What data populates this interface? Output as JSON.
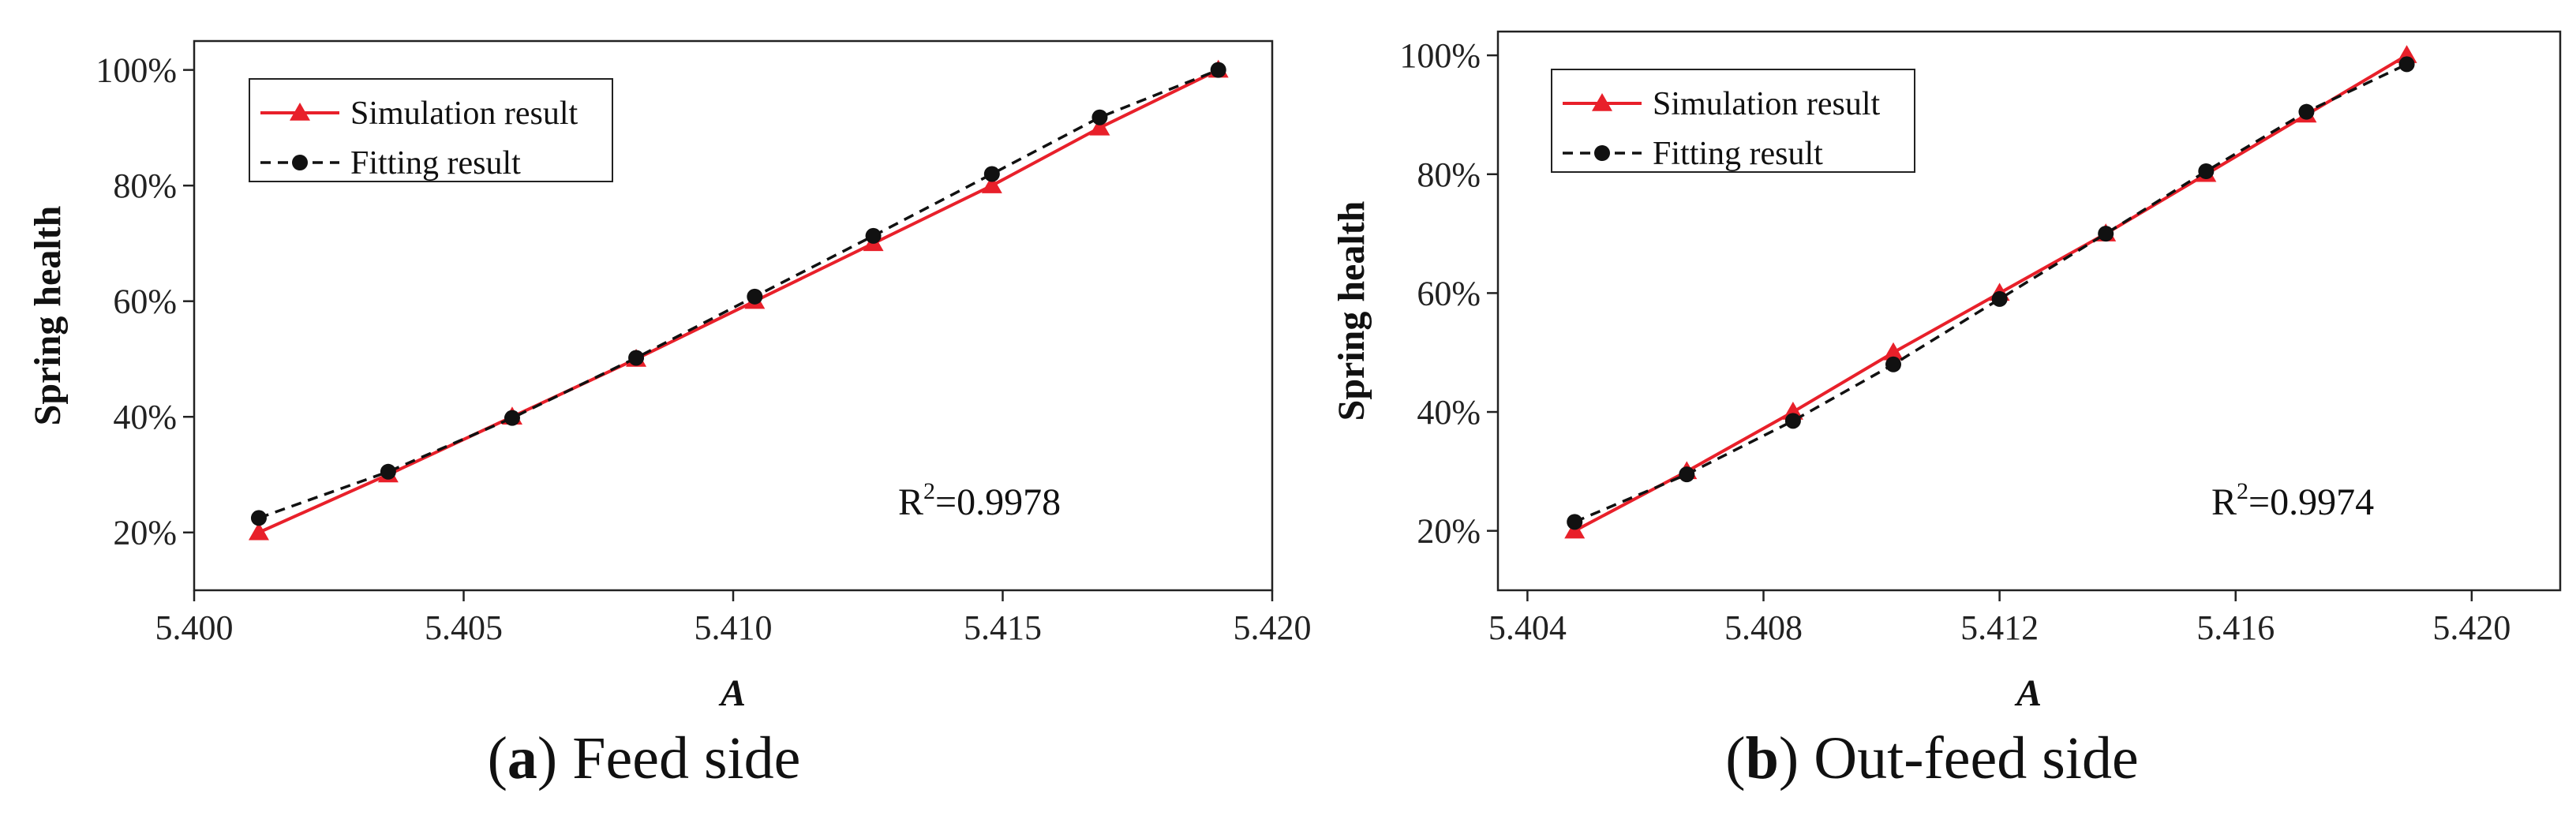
{
  "chart_data": [
    {
      "type": "line",
      "panel_label": "a",
      "caption": "Feed side",
      "xlabel": "A",
      "ylabel": "Spring health",
      "xlim": [
        5.4,
        5.42
      ],
      "ylim": [
        10,
        105
      ],
      "xticks": [
        5.4,
        5.405,
        5.41,
        5.415,
        5.42
      ],
      "xtick_labels": [
        "5.400",
        "5.405",
        "5.410",
        "5.415",
        "5.420"
      ],
      "yticks": [
        20,
        40,
        60,
        80,
        100
      ],
      "ytick_labels": [
        "20%",
        "40%",
        "60%",
        "80%",
        "100%"
      ],
      "legend_position": "top-left",
      "series": [
        {
          "name": "Simulation result",
          "color": "#e8202a",
          "marker": "triangle",
          "line": "solid",
          "x": [
            5.4012,
            5.4036,
            5.4059,
            5.4082,
            5.4104,
            5.4126,
            5.4148,
            5.4168,
            5.419
          ],
          "y": [
            20,
            30,
            40,
            50,
            60,
            70,
            80,
            90,
            100
          ]
        },
        {
          "name": "Fitting result",
          "color": "#111111",
          "marker": "circle",
          "line": "dashed",
          "x": [
            5.4012,
            5.4036,
            5.4059,
            5.4082,
            5.4104,
            5.4126,
            5.4148,
            5.4168,
            5.419
          ],
          "y": [
            22.5,
            30.5,
            39.8,
            50.2,
            60.8,
            71.3,
            82.0,
            91.8,
            100
          ]
        }
      ],
      "annotation": {
        "prefix": "R",
        "superscript": "2",
        "text": "=0.9978"
      }
    },
    {
      "type": "line",
      "panel_label": "b",
      "caption": "Out-feed side",
      "xlabel": "A",
      "ylabel": "Spring health",
      "xlim": [
        5.4035,
        5.4215
      ],
      "ylim": [
        10,
        104
      ],
      "xticks": [
        5.404,
        5.408,
        5.412,
        5.416,
        5.42
      ],
      "xtick_labels": [
        "5.404",
        "5.408",
        "5.412",
        "5.416",
        "5.420"
      ],
      "yticks": [
        20,
        40,
        60,
        80,
        100
      ],
      "ytick_labels": [
        "20%",
        "40%",
        "60%",
        "80%",
        "100%"
      ],
      "legend_position": "top-left",
      "series": [
        {
          "name": "Simulation result",
          "color": "#e8202a",
          "marker": "triangle",
          "line": "solid",
          "x": [
            5.4048,
            5.4067,
            5.4085,
            5.4102,
            5.412,
            5.4138,
            5.4155,
            5.4172,
            5.4189
          ],
          "y": [
            20,
            30,
            40,
            50,
            60,
            70,
            80,
            90,
            100
          ]
        },
        {
          "name": "Fitting result",
          "color": "#111111",
          "marker": "circle",
          "line": "dashed",
          "x": [
            5.4048,
            5.4067,
            5.4085,
            5.4102,
            5.412,
            5.4138,
            5.4155,
            5.4172,
            5.4189
          ],
          "y": [
            21.5,
            29.5,
            38.5,
            48.0,
            59.0,
            70.0,
            80.5,
            90.5,
            98.5
          ]
        }
      ],
      "annotation": {
        "prefix": "R",
        "superscript": "2",
        "text": "=0.9974"
      }
    }
  ]
}
